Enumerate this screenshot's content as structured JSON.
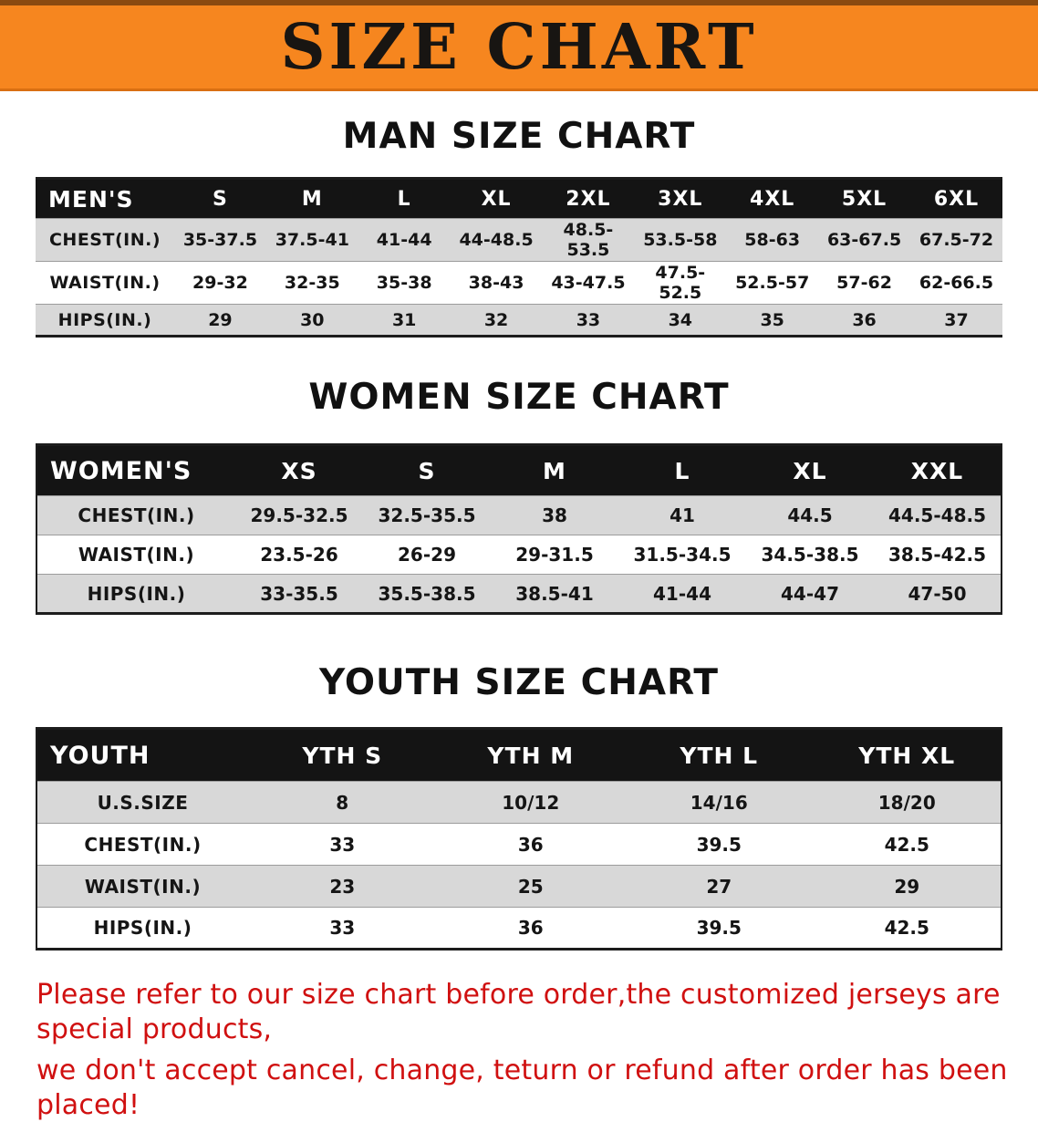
{
  "banner": {
    "title": "SIZE CHART"
  },
  "sections": {
    "men": {
      "heading": "MAN SIZE CHART",
      "table": {
        "header": [
          "MEN'S",
          "S",
          "M",
          "L",
          "XL",
          "2XL",
          "3XL",
          "4XL",
          "5XL",
          "6XL"
        ],
        "rows": [
          [
            "CHEST(IN.)",
            "35-37.5",
            "37.5-41",
            "41-44",
            "44-48.5",
            "48.5-53.5",
            "53.5-58",
            "58-63",
            "63-67.5",
            "67.5-72"
          ],
          [
            "WAIST(IN.)",
            "29-32",
            "32-35",
            "35-38",
            "38-43",
            "43-47.5",
            "47.5-52.5",
            "52.5-57",
            "57-62",
            "62-66.5"
          ],
          [
            "HIPS(IN.)",
            "29",
            "30",
            "31",
            "32",
            "33",
            "34",
            "35",
            "36",
            "37"
          ]
        ]
      }
    },
    "women": {
      "heading": "WOMEN SIZE CHART",
      "table": {
        "header": [
          "WOMEN'S",
          "XS",
          "S",
          "M",
          "L",
          "XL",
          "XXL"
        ],
        "rows": [
          [
            "CHEST(IN.)",
            "29.5-32.5",
            "32.5-35.5",
            "38",
            "41",
            "44.5",
            "44.5-48.5"
          ],
          [
            "WAIST(IN.)",
            "23.5-26",
            "26-29",
            "29-31.5",
            "31.5-34.5",
            "34.5-38.5",
            "38.5-42.5"
          ],
          [
            "HIPS(IN.)",
            "33-35.5",
            "35.5-38.5",
            "38.5-41",
            "41-44",
            "44-47",
            "47-50"
          ]
        ]
      }
    },
    "youth": {
      "heading": "YOUTH SIZE CHART",
      "table": {
        "header": [
          "YOUTH",
          "YTH S",
          "YTH M",
          "YTH L",
          "YTH XL"
        ],
        "rows": [
          [
            "U.S.SIZE",
            "8",
            "10/12",
            "14/16",
            "18/20"
          ],
          [
            "CHEST(IN.)",
            "33",
            "36",
            "39.5",
            "42.5"
          ],
          [
            "WAIST(IN.)",
            "23",
            "25",
            "27",
            "29"
          ],
          [
            "HIPS(IN.)",
            "33",
            "36",
            "39.5",
            "42.5"
          ]
        ]
      }
    }
  },
  "disclaimer": {
    "line1": "Please refer to our size chart before order,the customized jerseys are special products,",
    "line2": "we don't accept cancel, change, teturn or refund after order has been placed!"
  },
  "colors": {
    "banner_bg": "#f6861f",
    "table_header_bg": "#141414",
    "row_alt_bg": "#d8d8d8",
    "disclaimer_text": "#d01010"
  }
}
